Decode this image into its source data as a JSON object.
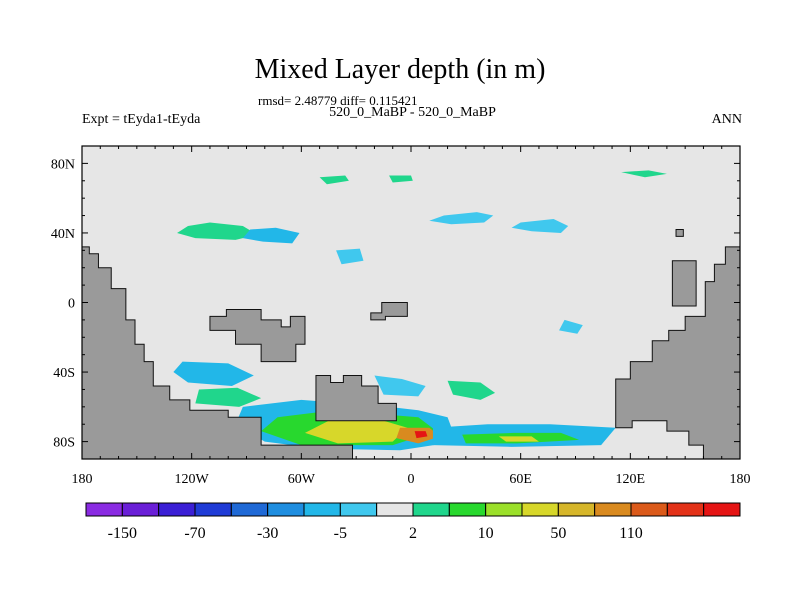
{
  "chart_data": {
    "type": "heatmap",
    "title": "Mixed Layer depth (in m)",
    "stats_text": "rmsd= 2.48779 diff= 0.115421",
    "subtitle_center": "520_0_MaBP - 520_0_MaBP",
    "subtitle_left": "Expt = tEyda1-tEyda",
    "subtitle_right": "ANN",
    "x_ticks": [
      {
        "value": -180,
        "label": "180"
      },
      {
        "value": -120,
        "label": "120W"
      },
      {
        "value": -60,
        "label": "60W"
      },
      {
        "value": 0,
        "label": "0"
      },
      {
        "value": 60,
        "label": "60E"
      },
      {
        "value": 120,
        "label": "120E"
      },
      {
        "value": 180,
        "label": "180"
      }
    ],
    "y_ticks": [
      {
        "value": 80,
        "label": "80N"
      },
      {
        "value": 40,
        "label": "40N"
      },
      {
        "value": 0,
        "label": "0"
      },
      {
        "value": -40,
        "label": "40S"
      },
      {
        "value": -80,
        "label": "80S"
      }
    ],
    "xlim": [
      -180,
      180
    ],
    "ylim": [
      -90,
      90
    ],
    "colorbar": {
      "colors": [
        "#8a2be2",
        "#6a1fd7",
        "#3b1fd5",
        "#1f3bd6",
        "#1f69d6",
        "#1f8ee0",
        "#22b7e8",
        "#40c8ee",
        "#e6e6e6",
        "#20d68c",
        "#28d82e",
        "#9be02a",
        "#d7d72a",
        "#d6b62a",
        "#d98a1f",
        "#db5a1a",
        "#e33218",
        "#e51414"
      ],
      "labels": [
        "-150",
        "-70",
        "-30",
        "-5",
        "2",
        "10",
        "50",
        "110"
      ]
    },
    "land_color": "#9a9a9a",
    "background_color": "#e6e6e6",
    "regions": {
      "land": [
        {
          "name": "west-continent",
          "points": [
            [
              -180,
              32
            ],
            [
              -176,
              32
            ],
            [
              -176,
              28
            ],
            [
              -171,
              28
            ],
            [
              -171,
              20
            ],
            [
              -164,
              20
            ],
            [
              -164,
              8
            ],
            [
              -156,
              8
            ],
            [
              -156,
              -10
            ],
            [
              -151,
              -10
            ],
            [
              -151,
              -24
            ],
            [
              -146,
              -24
            ],
            [
              -146,
              -34
            ],
            [
              -141,
              -34
            ],
            [
              -141,
              -48
            ],
            [
              -132,
              -48
            ],
            [
              -132,
              -56
            ],
            [
              -121,
              -56
            ],
            [
              -121,
              -62
            ],
            [
              -100,
              -62
            ],
            [
              -100,
              -66
            ],
            [
              -82,
              -66
            ],
            [
              -82,
              -82
            ],
            [
              -32,
              -82
            ],
            [
              -32,
              -90
            ],
            [
              -180,
              -90
            ]
          ]
        },
        {
          "name": "south-central-continent",
          "points": [
            [
              -52,
              -58
            ],
            [
              -52,
              -42
            ],
            [
              -44,
              -42
            ],
            [
              -44,
              -46
            ],
            [
              -37,
              -46
            ],
            [
              -37,
              -42
            ],
            [
              -27,
              -42
            ],
            [
              -27,
              -48
            ],
            [
              -18,
              -48
            ],
            [
              -18,
              -58
            ],
            [
              -8,
              -58
            ],
            [
              -8,
              -68
            ],
            [
              -52,
              -68
            ]
          ]
        },
        {
          "name": "tropical-island",
          "points": [
            [
              -110,
              -8
            ],
            [
              -101,
              -8
            ],
            [
              -101,
              -4
            ],
            [
              -82,
              -4
            ],
            [
              -82,
              -10
            ],
            [
              -71,
              -10
            ],
            [
              -71,
              -14
            ],
            [
              -66,
              -14
            ],
            [
              -66,
              -8
            ],
            [
              -58,
              -8
            ],
            [
              -58,
              -24
            ],
            [
              -63,
              -24
            ],
            [
              -63,
              -34
            ],
            [
              -82,
              -34
            ],
            [
              -82,
              -24
            ],
            [
              -96,
              -24
            ],
            [
              -96,
              -16
            ],
            [
              -110,
              -16
            ]
          ]
        },
        {
          "name": "small-island",
          "points": [
            [
              -16,
              0
            ],
            [
              -2,
              0
            ],
            [
              -2,
              -8
            ],
            [
              -14,
              -8
            ],
            [
              -14,
              -10
            ],
            [
              -22,
              -10
            ],
            [
              -22,
              -6
            ],
            [
              -16,
              -6
            ]
          ]
        },
        {
          "name": "east-continent",
          "points": [
            [
              180,
              32
            ],
            [
              172,
              32
            ],
            [
              172,
              22
            ],
            [
              166,
              22
            ],
            [
              166,
              12
            ],
            [
              161,
              12
            ],
            [
              161,
              -8
            ],
            [
              150,
              -8
            ],
            [
              150,
              -16
            ],
            [
              141,
              -16
            ],
            [
              141,
              -22
            ],
            [
              132,
              -22
            ],
            [
              132,
              -34
            ],
            [
              120,
              -34
            ],
            [
              120,
              -44
            ],
            [
              112,
              -44
            ],
            [
              112,
              -72
            ],
            [
              121,
              -72
            ],
            [
              121,
              -68
            ],
            [
              140,
              -68
            ],
            [
              140,
              -74
            ],
            [
              152,
              -74
            ],
            [
              152,
              -82
            ],
            [
              160,
              -82
            ],
            [
              160,
              -90
            ],
            [
              180,
              -90
            ]
          ]
        },
        {
          "name": "north-east-island",
          "points": [
            [
              143,
              24
            ],
            [
              156,
              24
            ],
            [
              156,
              -2
            ],
            [
              143,
              -2
            ]
          ]
        },
        {
          "name": "north-east-islet",
          "points": [
            [
              145,
              42
            ],
            [
              149,
              42
            ],
            [
              149,
              38
            ],
            [
              145,
              38
            ]
          ]
        }
      ],
      "anomalies": [
        {
          "name": "northern-band-1",
          "color": "#20d68c",
          "points": [
            [
              -122,
              44
            ],
            [
              -110,
              46
            ],
            [
              -92,
              44
            ],
            [
              -84,
              39
            ],
            [
              -96,
              36
            ],
            [
              -118,
              37
            ],
            [
              -128,
              40
            ]
          ]
        },
        {
          "name": "northern-band-2",
          "color": "#22b7e8",
          "points": [
            [
              -88,
              42
            ],
            [
              -74,
              43
            ],
            [
              -61,
              40
            ],
            [
              -65,
              34
            ],
            [
              -81,
              35
            ],
            [
              -92,
              37
            ]
          ]
        },
        {
          "name": "northern-band-3",
          "color": "#40c8ee",
          "points": [
            [
              18,
              50
            ],
            [
              36,
              52
            ],
            [
              45,
              50
            ],
            [
              40,
              46
            ],
            [
              22,
              45
            ],
            [
              10,
              47
            ]
          ]
        },
        {
          "name": "northern-band-4",
          "color": "#40c8ee",
          "points": [
            [
              60,
              46
            ],
            [
              78,
              48
            ],
            [
              86,
              44
            ],
            [
              82,
              40
            ],
            [
              66,
              41
            ],
            [
              55,
              43
            ]
          ]
        },
        {
          "name": "arctic-patch-1",
          "color": "#20d68c",
          "points": [
            [
              -50,
              72
            ],
            [
              -36,
              73
            ],
            [
              -34,
              70
            ],
            [
              -46,
              68
            ]
          ]
        },
        {
          "name": "arctic-patch-2",
          "color": "#20d68c",
          "points": [
            [
              -12,
              73
            ],
            [
              0,
              73
            ],
            [
              1,
              70
            ],
            [
              -10,
              69
            ]
          ]
        },
        {
          "name": "arctic-patch-3",
          "color": "#20d68c",
          "points": [
            [
              115,
              75
            ],
            [
              130,
              76
            ],
            [
              140,
              74
            ],
            [
              128,
              72
            ]
          ]
        },
        {
          "name": "mid-north-ocean",
          "color": "#40c8ee",
          "points": [
            [
              -41,
              30
            ],
            [
              -28,
              31
            ],
            [
              -26,
              24
            ],
            [
              -38,
              22
            ]
          ]
        },
        {
          "name": "equatorial-east",
          "color": "#40c8ee",
          "points": [
            [
              84,
              -10
            ],
            [
              94,
              -13
            ],
            [
              91,
              -18
            ],
            [
              81,
              -16
            ]
          ]
        },
        {
          "name": "south-band-1",
          "color": "#22b7e8",
          "points": [
            [
              -125,
              -34
            ],
            [
              -100,
              -35
            ],
            [
              -86,
              -42
            ],
            [
              -98,
              -48
            ],
            [
              -122,
              -46
            ],
            [
              -130,
              -40
            ]
          ]
        },
        {
          "name": "south-band-2",
          "color": "#20d68c",
          "points": [
            [
              -116,
              -50
            ],
            [
              -95,
              -49
            ],
            [
              -82,
              -55
            ],
            [
              -94,
              -60
            ],
            [
              -118,
              -58
            ]
          ]
        },
        {
          "name": "south-band-3",
          "color": "#40c8ee",
          "points": [
            [
              -20,
              -42
            ],
            [
              -5,
              -44
            ],
            [
              8,
              -48
            ],
            [
              4,
              -54
            ],
            [
              -15,
              -53
            ]
          ]
        },
        {
          "name": "south-band-4",
          "color": "#20d68c",
          "points": [
            [
              20,
              -45
            ],
            [
              38,
              -46
            ],
            [
              46,
              -52
            ],
            [
              38,
              -56
            ],
            [
              23,
              -53
            ]
          ]
        },
        {
          "name": "southern-core-1",
          "color": "#22b7e8",
          "points": [
            [
              -92,
              -60
            ],
            [
              -60,
              -56
            ],
            [
              -35,
              -58
            ],
            [
              -12,
              -60
            ],
            [
              4,
              -62
            ],
            [
              20,
              -66
            ],
            [
              25,
              -80
            ],
            [
              -6,
              -85
            ],
            [
              -50,
              -84
            ],
            [
              -80,
              -80
            ],
            [
              -96,
              -70
            ]
          ]
        },
        {
          "name": "southern-core-2",
          "color": "#28d82e",
          "points": [
            [
              -73,
              -66
            ],
            [
              -42,
              -62
            ],
            [
              -20,
              -64
            ],
            [
              4,
              -66
            ],
            [
              14,
              -74
            ],
            [
              -10,
              -82
            ],
            [
              -60,
              -82
            ],
            [
              -82,
              -74
            ]
          ]
        },
        {
          "name": "southern-core-3",
          "color": "#d7d72a",
          "points": [
            [
              -45,
              -68
            ],
            [
              -15,
              -68
            ],
            [
              -2,
              -72
            ],
            [
              -10,
              -80
            ],
            [
              -40,
              -81
            ],
            [
              -58,
              -75
            ]
          ]
        },
        {
          "name": "southern-core-4",
          "color": "#d98a1f",
          "points": [
            [
              -6,
              -72
            ],
            [
              10,
              -72
            ],
            [
              16,
              -77
            ],
            [
              4,
              -81
            ],
            [
              -8,
              -78
            ]
          ]
        },
        {
          "name": "southern-core-5",
          "color": "#e51414",
          "points": [
            [
              2,
              -74
            ],
            [
              8,
              -74
            ],
            [
              9,
              -77
            ],
            [
              3,
              -78
            ]
          ]
        },
        {
          "name": "southern-east-1",
          "color": "#22b7e8",
          "points": [
            [
              12,
              -72
            ],
            [
              42,
              -70
            ],
            [
              76,
              -70
            ],
            [
              112,
              -72
            ],
            [
              104,
              -82
            ],
            [
              55,
              -83
            ],
            [
              12,
              -82
            ]
          ]
        },
        {
          "name": "southern-east-2",
          "color": "#28d82e",
          "points": [
            [
              28,
              -76
            ],
            [
              56,
              -75
            ],
            [
              82,
              -75
            ],
            [
              92,
              -79
            ],
            [
              58,
              -81
            ],
            [
              30,
              -81
            ]
          ]
        },
        {
          "name": "southern-east-3",
          "color": "#d7d72a",
          "points": [
            [
              48,
              -77
            ],
            [
              66,
              -77
            ],
            [
              70,
              -80
            ],
            [
              52,
              -80
            ]
          ]
        },
        {
          "name": "dateline-west-patch",
          "color": "#40c8ee",
          "points": [
            [
              -176,
              -58
            ],
            [
              -164,
              -57
            ],
            [
              -166,
              -62
            ],
            [
              -174,
              -63
            ]
          ]
        }
      ]
    }
  }
}
